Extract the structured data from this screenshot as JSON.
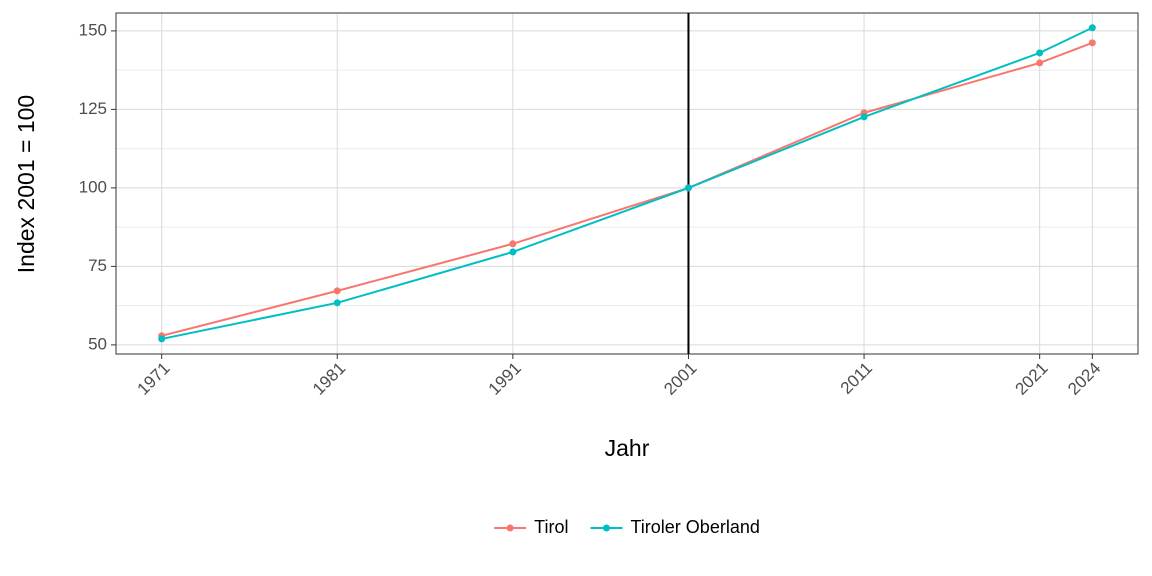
{
  "chart_data": {
    "type": "line",
    "x_label": "Jahr",
    "y_label": "Index 2001 = 100",
    "x": [
      1971,
      1981,
      1991,
      2001,
      2011,
      2021,
      2024
    ],
    "series": [
      {
        "name": "Tirol",
        "color": "#f8766d",
        "values": [
          52.9,
          67.2,
          82.2,
          100,
          123.9,
          139.8,
          146.2
        ]
      },
      {
        "name": "Tiroler Oberland",
        "color": "#00bfc4",
        "values": [
          51.9,
          63.4,
          79.6,
          100,
          122.6,
          143,
          151
        ]
      }
    ],
    "xlim": [
      1968.4,
      2026.6
    ],
    "xticks": [
      1971,
      1981,
      1991,
      2001,
      2011,
      2021,
      2024
    ],
    "ylim": [
      47.1,
      155.7
    ],
    "yticks": [
      50,
      75,
      100,
      125,
      150
    ],
    "vline": 2001,
    "grid": true,
    "legend": "bottom"
  }
}
